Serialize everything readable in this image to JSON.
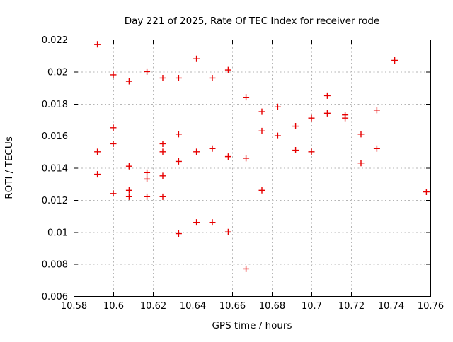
{
  "window": {
    "background": "#ffffff"
  },
  "chart_data": {
    "type": "scatter",
    "title": "Day 221 of 2025, Rate Of TEC Index for receiver rode",
    "xlabel": "GPS time / hours",
    "ylabel": "ROTI / TECUs",
    "xlim": [
      10.58,
      10.76
    ],
    "ylim": [
      0.006,
      0.022
    ],
    "x_ticks": [
      "10.58",
      "10.6",
      "10.62",
      "10.64",
      "10.66",
      "10.68",
      "10.7",
      "10.72",
      "10.74",
      "10.76"
    ],
    "y_ticks": [
      "0.006",
      "0.008",
      "0.01",
      "0.012",
      "0.014",
      "0.016",
      "0.018",
      "0.02",
      "0.022"
    ],
    "grid": true,
    "legend_position": "none",
    "marker": "plus",
    "colors": {
      "points": "#e60000",
      "grid": "#b5b5b5",
      "axis": "#000000",
      "text": "#000000"
    },
    "series": [
      {
        "name": "ROTI",
        "points": [
          [
            10.592,
            0.0217
          ],
          [
            10.592,
            0.015
          ],
          [
            10.592,
            0.0136
          ],
          [
            10.6,
            0.0198
          ],
          [
            10.6,
            0.0165
          ],
          [
            10.6,
            0.0155
          ],
          [
            10.6,
            0.0124
          ],
          [
            10.608,
            0.0194
          ],
          [
            10.608,
            0.0141
          ],
          [
            10.608,
            0.0126
          ],
          [
            10.608,
            0.0122
          ],
          [
            10.617,
            0.02
          ],
          [
            10.617,
            0.0137
          ],
          [
            10.617,
            0.0133
          ],
          [
            10.617,
            0.0122
          ],
          [
            10.625,
            0.0196
          ],
          [
            10.625,
            0.0155
          ],
          [
            10.625,
            0.015
          ],
          [
            10.625,
            0.0135
          ],
          [
            10.625,
            0.0122
          ],
          [
            10.633,
            0.0196
          ],
          [
            10.633,
            0.0161
          ],
          [
            10.633,
            0.0144
          ],
          [
            10.633,
            0.0099
          ],
          [
            10.642,
            0.0208
          ],
          [
            10.642,
            0.015
          ],
          [
            10.642,
            0.0106
          ],
          [
            10.65,
            0.0196
          ],
          [
            10.65,
            0.0152
          ],
          [
            10.65,
            0.0106
          ],
          [
            10.658,
            0.0201
          ],
          [
            10.658,
            0.0147
          ],
          [
            10.658,
            0.01
          ],
          [
            10.667,
            0.0184
          ],
          [
            10.667,
            0.0146
          ],
          [
            10.667,
            0.0077
          ],
          [
            10.675,
            0.0175
          ],
          [
            10.675,
            0.0163
          ],
          [
            10.675,
            0.0126
          ],
          [
            10.683,
            0.0178
          ],
          [
            10.683,
            0.016
          ],
          [
            10.692,
            0.0166
          ],
          [
            10.692,
            0.0151
          ],
          [
            10.7,
            0.0171
          ],
          [
            10.7,
            0.015
          ],
          [
            10.708,
            0.0185
          ],
          [
            10.708,
            0.0174
          ],
          [
            10.717,
            0.0173
          ],
          [
            10.717,
            0.0171
          ],
          [
            10.725,
            0.0161
          ],
          [
            10.725,
            0.0143
          ],
          [
            10.733,
            0.0176
          ],
          [
            10.733,
            0.0152
          ],
          [
            10.742,
            0.0207
          ],
          [
            10.758,
            0.0125
          ]
        ]
      }
    ]
  }
}
